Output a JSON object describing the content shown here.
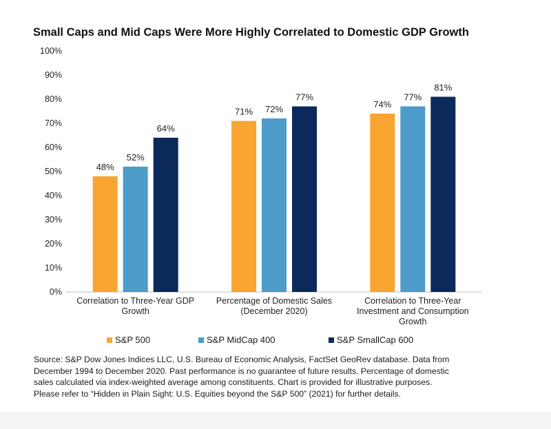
{
  "chart_data": {
    "type": "bar",
    "title": "Small Caps and Mid Caps Were More Highly Correlated to Domestic GDP Growth",
    "categories": [
      [
        "Correlation to Three-Year GDP",
        "Growth"
      ],
      [
        "Percentage of Domestic Sales",
        "(December 2020)"
      ],
      [
        "Correlation to Three-Year",
        "Investment and Consumption",
        "Growth"
      ]
    ],
    "series": [
      {
        "name": "S&P 500",
        "color": "#F9A531",
        "values": [
          48,
          71,
          74
        ],
        "labels": [
          "48%",
          "71%",
          "74%"
        ]
      },
      {
        "name": "S&P MidCap 400",
        "color": "#4C9BC8",
        "values": [
          52,
          72,
          77
        ],
        "labels": [
          "52%",
          "72%",
          "77%"
        ]
      },
      {
        "name": "S&P SmallCap 600",
        "color": "#0B2A5B",
        "values": [
          64,
          77,
          81
        ],
        "labels": [
          "64%",
          "77%",
          "81%"
        ]
      }
    ],
    "ylim": [
      0,
      100
    ],
    "yticks": [
      "0%",
      "10%",
      "20%",
      "30%",
      "40%",
      "50%",
      "60%",
      "70%",
      "80%",
      "90%",
      "100%"
    ],
    "grid": false,
    "legend_position": "bottom"
  },
  "source": [
    "Source: S&P Dow Jones Indices LLC, U.S. Bureau of Economic Analysis, FactSet GeoRev database.  Data from",
    "December 1994 to December 2020.  Past performance is no guarantee of future results.  Percentage of domestic",
    "sales calculated via index-weighted average among constituents.  Chart is provided for illustrative purposes.",
    "Please refer to “Hidden in Plain Sight: U.S. Equities beyond the S&P 500” (2021) for further details."
  ]
}
